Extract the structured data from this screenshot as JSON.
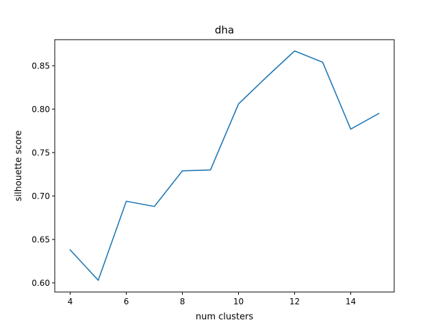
{
  "chart_data": {
    "type": "line",
    "title": "dha",
    "xlabel": "num clusters",
    "ylabel": "silhouette score",
    "xlim": [
      3.45,
      15.55
    ],
    "ylim": [
      0.5895,
      0.88
    ],
    "x_ticks": [
      4,
      6,
      8,
      10,
      12,
      14
    ],
    "y_ticks": [
      0.6,
      0.65,
      0.7,
      0.75,
      0.8,
      0.85
    ],
    "x_tick_labels": [
      "4",
      "6",
      "8",
      "10",
      "12",
      "14"
    ],
    "y_tick_labels": [
      "0.60",
      "0.65",
      "0.70",
      "0.75",
      "0.80",
      "0.85"
    ],
    "grid": false,
    "series": [
      {
        "color": "#1f77b4",
        "x": [
          4,
          5,
          6,
          7,
          8,
          9,
          10,
          11,
          12,
          13,
          14,
          15
        ],
        "y": [
          0.638,
          0.603,
          0.694,
          0.688,
          0.729,
          0.73,
          0.806,
          0.837,
          0.867,
          0.854,
          0.777,
          0.795
        ]
      }
    ]
  }
}
